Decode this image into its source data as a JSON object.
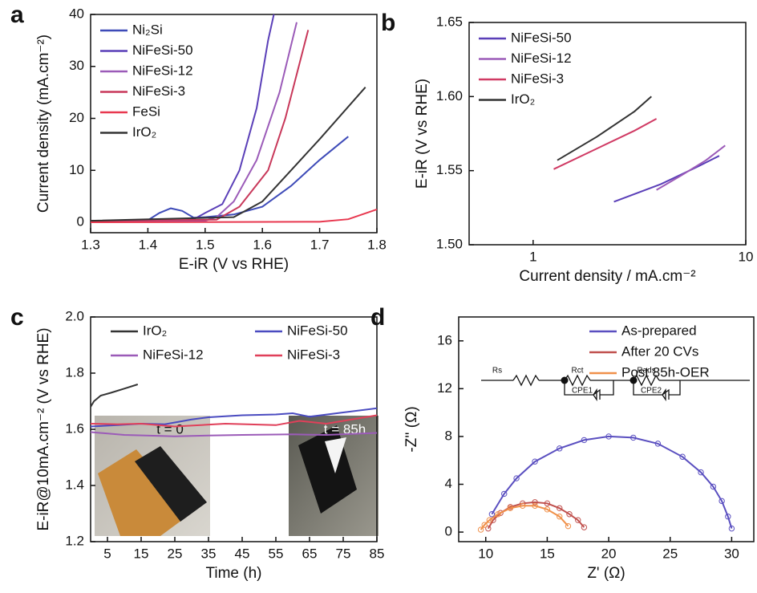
{
  "chart_data": [
    {
      "type": "line",
      "panel": "a",
      "xlabel": "E-iR (V vs RHE)",
      "ylabel": "Current density (mA.cm⁻²)",
      "xlim": [
        1.3,
        1.8
      ],
      "xticks": [
        1.3,
        1.4,
        1.5,
        1.6,
        1.7,
        1.8
      ],
      "ylim": [
        -2,
        40
      ],
      "yticks": [
        0,
        10,
        20,
        30,
        40
      ],
      "legend": "upper left",
      "series": [
        {
          "name": "Ni₂Si",
          "color": "#3e4bb8",
          "x": [
            1.3,
            1.4,
            1.42,
            1.44,
            1.46,
            1.48,
            1.5,
            1.55,
            1.6,
            1.65,
            1.7,
            1.75
          ],
          "values": [
            0.3,
            0.4,
            1.8,
            2.7,
            2.2,
            0.9,
            1.0,
            1.5,
            3,
            7,
            12,
            16.5
          ]
        },
        {
          "name": "NiFeSi-50",
          "color": "#5a3fb8",
          "x": [
            1.3,
            1.46,
            1.48,
            1.5,
            1.53,
            1.56,
            1.59,
            1.61,
            1.62
          ],
          "values": [
            0.3,
            0.3,
            0.6,
            1.8,
            3.5,
            10,
            22,
            35,
            40
          ]
        },
        {
          "name": "NiFeSi-12",
          "color": "#9b5bb8",
          "x": [
            1.3,
            1.5,
            1.52,
            1.55,
            1.59,
            1.63,
            1.66
          ],
          "values": [
            0.3,
            0.3,
            1,
            4,
            12,
            25,
            38.5
          ]
        },
        {
          "name": "NiFeSi-3",
          "color": "#c8385a",
          "x": [
            1.3,
            1.52,
            1.56,
            1.61,
            1.64,
            1.68
          ],
          "values": [
            0.3,
            0.5,
            3,
            10,
            20,
            37
          ]
        },
        {
          "name": "FeSi",
          "color": "#e8384f",
          "x": [
            1.3,
            1.7,
            1.75,
            1.8
          ],
          "values": [
            0,
            0.1,
            0.6,
            2.5
          ]
        },
        {
          "name": "IrO₂",
          "color": "#333333",
          "x": [
            1.3,
            1.55,
            1.6,
            1.65,
            1.7,
            1.78
          ],
          "values": [
            0.3,
            1,
            4,
            10,
            16,
            26
          ]
        }
      ]
    },
    {
      "type": "line",
      "panel": "b",
      "xlabel": "Current density / mA.cm⁻²",
      "ylabel": "E-iR (V vs RHE)",
      "xscale": "log",
      "xlim": [
        0.5,
        10
      ],
      "xticks": [
        1,
        10
      ],
      "ylim": [
        1.5,
        1.65
      ],
      "yticks": [
        {
          "value": 1.5,
          "label": "1.50"
        },
        1.55,
        {
          "value": 1.6,
          "label": "1.60"
        },
        1.65
      ],
      "legend": "upper left",
      "series": [
        {
          "name": "NiFeSi-50",
          "color": "#5a3fb8",
          "x": [
            2.4,
            4,
            6,
            7.5
          ],
          "values": [
            1.529,
            1.541,
            1.553,
            1.56
          ]
        },
        {
          "name": "NiFeSi-12",
          "color": "#9b5bb8",
          "x": [
            3.8,
            5,
            6.5,
            8
          ],
          "values": [
            1.537,
            1.547,
            1.557,
            1.567
          ]
        },
        {
          "name": "NiFeSi-3",
          "color": "#d03a64",
          "x": [
            1.25,
            2,
            3,
            3.8
          ],
          "values": [
            1.551,
            1.565,
            1.577,
            1.585
          ]
        },
        {
          "name": "IrO₂",
          "color": "#333333",
          "x": [
            1.3,
            2,
            3,
            3.6
          ],
          "values": [
            1.557,
            1.573,
            1.59,
            1.6
          ]
        }
      ]
    },
    {
      "type": "line",
      "panel": "c",
      "xlabel": "Time (h)",
      "ylabel": "E-iR@10mA.cm⁻² (V vs RHE)",
      "xlim": [
        0,
        85
      ],
      "xticks": [
        5,
        15,
        25,
        35,
        45,
        55,
        65,
        75,
        85
      ],
      "ylim": [
        1.2,
        2.0
      ],
      "yticks": [
        1.2,
        1.4,
        1.6,
        1.8,
        {
          "value": 2.0,
          "label": "2.0"
        }
      ],
      "legend": "upper",
      "legend_columns": 2,
      "annotations": [
        "t = 0",
        "t = 85h"
      ],
      "series": [
        {
          "name": "IrO₂",
          "color": "#333333",
          "x": [
            0,
            1,
            3,
            6,
            10,
            14
          ],
          "values": [
            1.68,
            1.7,
            1.72,
            1.73,
            1.745,
            1.76
          ]
        },
        {
          "name": "NiFeSi-50",
          "color": "#4a4bc0",
          "x": [
            0,
            8,
            15,
            22,
            30,
            35,
            45,
            55,
            60,
            65,
            75,
            85
          ],
          "values": [
            1.61,
            1.615,
            1.62,
            1.618,
            1.635,
            1.643,
            1.65,
            1.653,
            1.657,
            1.645,
            1.66,
            1.675
          ]
        },
        {
          "name": "NiFeSi-12",
          "color": "#9b5bb8",
          "x": [
            0,
            10,
            25,
            35,
            45,
            60,
            70,
            85
          ],
          "values": [
            1.59,
            1.58,
            1.575,
            1.578,
            1.58,
            1.582,
            1.58,
            1.587
          ]
        },
        {
          "name": "NiFeSi-3",
          "color": "#e0405a",
          "x": [
            0,
            8,
            15,
            25,
            40,
            55,
            62,
            70,
            80,
            85
          ],
          "values": [
            1.62,
            1.618,
            1.62,
            1.61,
            1.62,
            1.615,
            1.63,
            1.62,
            1.64,
            1.65
          ]
        }
      ]
    },
    {
      "type": "scatter",
      "panel": "d",
      "xlabel": "Z' (Ω)",
      "ylabel": "-Z'' (Ω)",
      "xlim": [
        7.8,
        31.8
      ],
      "xticks": [
        10,
        15,
        20,
        25,
        30
      ],
      "ylim": [
        -0.8,
        18
      ],
      "yticks": [
        0,
        4,
        8,
        12,
        16
      ],
      "legend": "upper right",
      "circuit": [
        "Rs",
        "Rct",
        "Rads",
        "CPE1",
        "CPE2"
      ],
      "series": [
        {
          "name": "As-prepared",
          "color": "#5a4fc0",
          "x": [
            10.5,
            11.5,
            12.5,
            14,
            16,
            18,
            20,
            22,
            24,
            26,
            27.5,
            28.5,
            29.2,
            29.7,
            30
          ],
          "values": [
            1.5,
            3.2,
            4.5,
            5.9,
            7.0,
            7.7,
            8.0,
            7.9,
            7.4,
            6.3,
            5.0,
            3.8,
            2.6,
            1.3,
            0.3
          ]
        },
        {
          "name": "After 20 CVs",
          "color": "#c0504d",
          "x": [
            10.2,
            10.6,
            11.2,
            12,
            13,
            14,
            15,
            16,
            16.8,
            17.5,
            18
          ],
          "values": [
            0.3,
            1.0,
            1.6,
            2.1,
            2.4,
            2.5,
            2.4,
            2.0,
            1.5,
            1.0,
            0.4
          ]
        },
        {
          "name": "Post 85h-OER",
          "color": "#f0904a",
          "x": [
            9.6,
            9.9,
            10.3,
            11,
            12,
            13,
            14,
            15,
            16,
            16.7
          ],
          "values": [
            0.2,
            0.6,
            1.0,
            1.5,
            2.0,
            2.2,
            2.2,
            1.9,
            1.3,
            0.5
          ]
        }
      ]
    }
  ]
}
